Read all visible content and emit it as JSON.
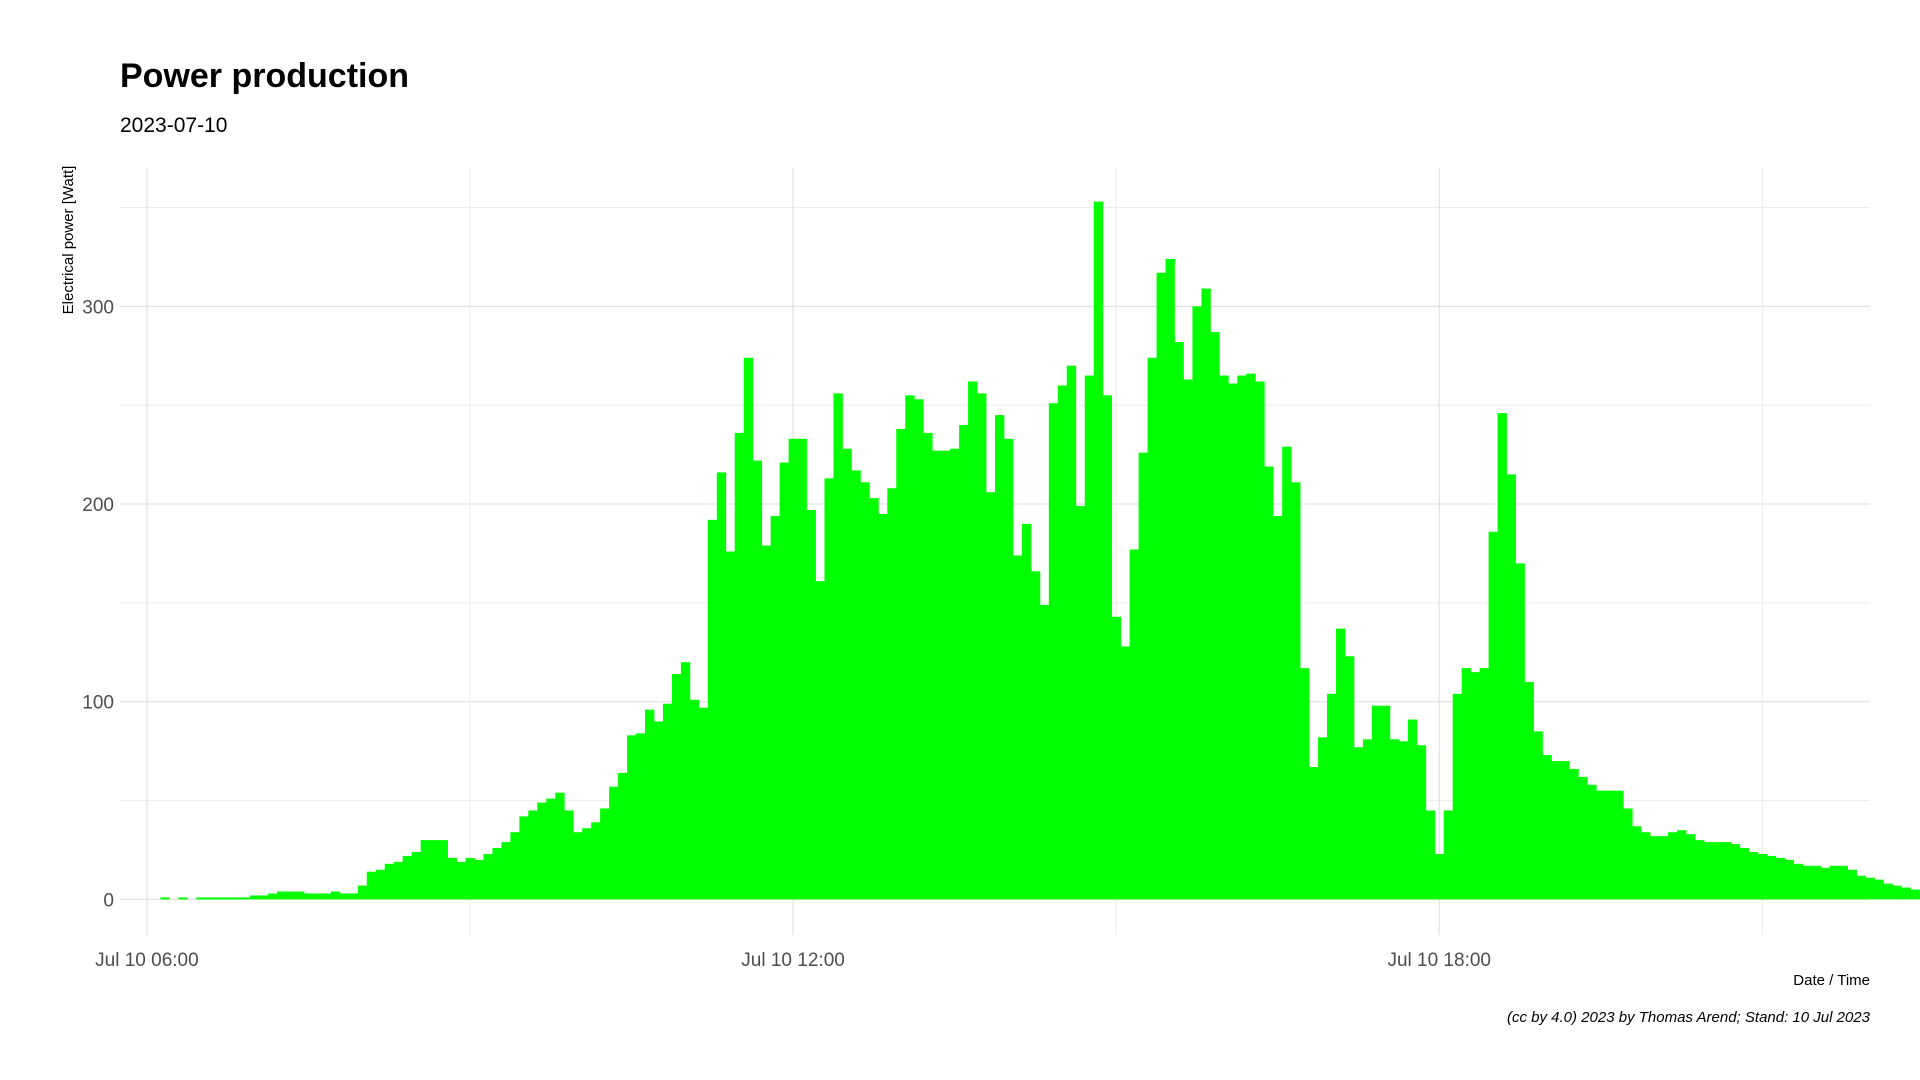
{
  "chart_data": {
    "type": "bar",
    "title": "Power production",
    "subtitle": "2023-07-10",
    "xlabel": "Date / Time",
    "ylabel": "Electrical power [Watt]",
    "caption": "(cc by 4.0) 2023 by Thomas Arend; Stand: 10 Jul 2023",
    "bar_color": "#00ff00",
    "grid": true,
    "x_start": "Jul 10 05:45",
    "x_end": "Jul 10 22:00",
    "x_major_ticks": [
      {
        "time": "Jul 10 06:00",
        "label": "Jul 10 06:00"
      },
      {
        "time": "Jul 10 12:00",
        "label": "Jul 10 12:00"
      },
      {
        "time": "Jul 10 18:00",
        "label": "Jul 10 18:00"
      }
    ],
    "x_minor_ticks": [
      "Jul 10 09:00",
      "Jul 10 15:00",
      "Jul 10 21:00"
    ],
    "ylim": [
      -18,
      370
    ],
    "y_major_ticks": [
      0,
      100,
      200,
      300
    ],
    "y_minor_ticks": [
      50,
      150,
      250,
      350
    ],
    "bar_width_minutes": 5,
    "first_bar_time": "Jul 10 06:10",
    "values": [
      1,
      0,
      1,
      0,
      1,
      1,
      1,
      1,
      1,
      1,
      2,
      2,
      3,
      4,
      4,
      4,
      3,
      3,
      3,
      4,
      3,
      3,
      7,
      14,
      15,
      18,
      19,
      22,
      24,
      30,
      30,
      30,
      21,
      19,
      21,
      20,
      23,
      26,
      29,
      34,
      42,
      45,
      49,
      51,
      54,
      45,
      34,
      36,
      39,
      46,
      57,
      64,
      83,
      84,
      96,
      90,
      99,
      114,
      120,
      101,
      97,
      192,
      216,
      176,
      236,
      274,
      222,
      179,
      194,
      221,
      233,
      233,
      197,
      161,
      213,
      256,
      228,
      217,
      211,
      203,
      195,
      208,
      238,
      255,
      253,
      236,
      227,
      227,
      228,
      240,
      262,
      256,
      206,
      245,
      233,
      174,
      190,
      166,
      149,
      251,
      260,
      270,
      199,
      265,
      353,
      255,
      143,
      128,
      177,
      226,
      274,
      317,
      324,
      282,
      263,
      300,
      309,
      287,
      265,
      261,
      265,
      266,
      262,
      219,
      194,
      229,
      211,
      117,
      67,
      82,
      104,
      137,
      123,
      77,
      81,
      98,
      98,
      81,
      80,
      91,
      78,
      45,
      23,
      45,
      104,
      117,
      115,
      117,
      186,
      246,
      215,
      170,
      110,
      85,
      73,
      70,
      70,
      66,
      62,
      58,
      55,
      55,
      55,
      46,
      37,
      34,
      32,
      32,
      34,
      35,
      33,
      30,
      29,
      29,
      29,
      28,
      26,
      24,
      23,
      22,
      21,
      20,
      18,
      17,
      17,
      16,
      17,
      17,
      15,
      12,
      11,
      10,
      8,
      7,
      6,
      5,
      3
    ]
  }
}
